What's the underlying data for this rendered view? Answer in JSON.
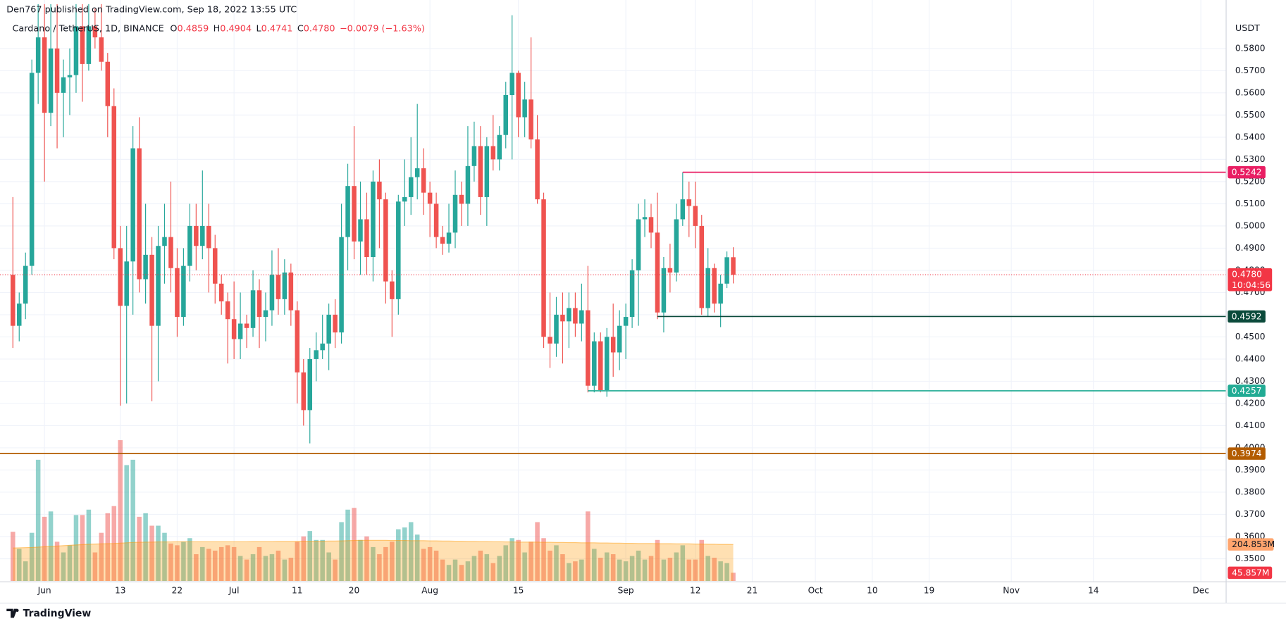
{
  "header": {
    "published": "Den767 published on TradingView.com, Sep 18, 2022 13:55 UTC",
    "footer": "TradingView"
  },
  "chart_data": {
    "type": "candlestick",
    "symbol": "Cardano / TetherUS, 1D, BINANCE",
    "ohlc_legend": [
      {
        "key": "O",
        "value": "0.4859"
      },
      {
        "key": "H",
        "value": "0.4904"
      },
      {
        "key": "L",
        "value": "0.4741"
      },
      {
        "key": "C",
        "value": "0.4780"
      }
    ],
    "change": "−0.0079 (−1.63%)",
    "y_unit": "USDT",
    "up_color": "#26a69a",
    "down_color": "#ef5350",
    "x": [
      "2022-05-27",
      "2022-05-28",
      "2022-05-29",
      "2022-05-30",
      "2022-05-31",
      "2022-06-01",
      "2022-06-02",
      "2022-06-03",
      "2022-06-04",
      "2022-06-05",
      "2022-06-06",
      "2022-06-07",
      "2022-06-08",
      "2022-06-09",
      "2022-06-10",
      "2022-06-11",
      "2022-06-12",
      "2022-06-13",
      "2022-06-14",
      "2022-06-15",
      "2022-06-16",
      "2022-06-17",
      "2022-06-18",
      "2022-06-19",
      "2022-06-20",
      "2022-06-21",
      "2022-06-22",
      "2022-06-23",
      "2022-06-24",
      "2022-06-25",
      "2022-06-26",
      "2022-06-27",
      "2022-06-28",
      "2022-06-29",
      "2022-06-30",
      "2022-07-01",
      "2022-07-02",
      "2022-07-03",
      "2022-07-04",
      "2022-07-05",
      "2022-07-06",
      "2022-07-07",
      "2022-07-08",
      "2022-07-09",
      "2022-07-10",
      "2022-07-11",
      "2022-07-12",
      "2022-07-13",
      "2022-07-14",
      "2022-07-15",
      "2022-07-16",
      "2022-07-17",
      "2022-07-18",
      "2022-07-19",
      "2022-07-20",
      "2022-07-21",
      "2022-07-22",
      "2022-07-23",
      "2022-07-24",
      "2022-07-25",
      "2022-07-26",
      "2022-07-27",
      "2022-07-28",
      "2022-07-29",
      "2022-07-30",
      "2022-07-31",
      "2022-08-01",
      "2022-08-02",
      "2022-08-03",
      "2022-08-04",
      "2022-08-05",
      "2022-08-06",
      "2022-08-07",
      "2022-08-08",
      "2022-08-09",
      "2022-08-10",
      "2022-08-11",
      "2022-08-12",
      "2022-08-13",
      "2022-08-14",
      "2022-08-15",
      "2022-08-16",
      "2022-08-17",
      "2022-08-18",
      "2022-08-19",
      "2022-08-20",
      "2022-08-21",
      "2022-08-22",
      "2022-08-23",
      "2022-08-24",
      "2022-08-25",
      "2022-08-26",
      "2022-08-27",
      "2022-08-28",
      "2022-08-29",
      "2022-08-30",
      "2022-08-31",
      "2022-09-01",
      "2022-09-02",
      "2022-09-03",
      "2022-09-04",
      "2022-09-05",
      "2022-09-06",
      "2022-09-07",
      "2022-09-08",
      "2022-09-09",
      "2022-09-10",
      "2022-09-11",
      "2022-09-12",
      "2022-09-13",
      "2022-09-14",
      "2022-09-15",
      "2022-09-16",
      "2022-09-17",
      "2022-09-18"
    ],
    "open": [
      0.478,
      0.455,
      0.465,
      0.482,
      0.569,
      0.585,
      0.551,
      0.58,
      0.56,
      0.567,
      0.568,
      0.59,
      0.573,
      0.59,
      0.585,
      0.574,
      0.554,
      0.49,
      0.464,
      0.484,
      0.535,
      0.476,
      0.487,
      0.455,
      0.491,
      0.495,
      0.481,
      0.459,
      0.482,
      0.5,
      0.491,
      0.5,
      0.49,
      0.474,
      0.466,
      0.458,
      0.449,
      0.456,
      0.454,
      0.471,
      0.459,
      0.462,
      0.478,
      0.467,
      0.479,
      0.462,
      0.434,
      0.417,
      0.44,
      0.444,
      0.447,
      0.46,
      0.452,
      0.495,
      0.518,
      0.493,
      0.503,
      0.486,
      0.52,
      0.512,
      0.475,
      0.467,
      0.511,
      0.513,
      0.522,
      0.526,
      0.515,
      0.51,
      0.495,
      0.492,
      0.497,
      0.514,
      0.51,
      0.527,
      0.536,
      0.513,
      0.536,
      0.53,
      0.541,
      0.559,
      0.569,
      0.549,
      0.557,
      0.539,
      0.512,
      0.45,
      0.447,
      0.46,
      0.457,
      0.463,
      0.456,
      0.462,
      0.428,
      0.448,
      0.426,
      0.45,
      0.443,
      0.455,
      0.459,
      0.48,
      0.503,
      0.504,
      0.497,
      0.461,
      0.481,
      0.479,
      0.503,
      0.512,
      0.509,
      0.5,
      0.463,
      0.481,
      0.465,
      0.474,
      0.4859
    ],
    "high": [
      0.513,
      0.47,
      0.488,
      0.575,
      0.6,
      0.6,
      0.6,
      0.6,
      0.575,
      0.58,
      0.6,
      0.6,
      0.6,
      0.598,
      0.6,
      0.578,
      0.562,
      0.5,
      0.5,
      0.545,
      0.549,
      0.51,
      0.495,
      0.5,
      0.51,
      0.52,
      0.49,
      0.49,
      0.51,
      0.51,
      0.525,
      0.51,
      0.496,
      0.478,
      0.47,
      0.475,
      0.47,
      0.46,
      0.48,
      0.476,
      0.47,
      0.489,
      0.49,
      0.485,
      0.483,
      0.466,
      0.44,
      0.445,
      0.452,
      0.46,
      0.465,
      0.467,
      0.51,
      0.528,
      0.545,
      0.52,
      0.515,
      0.525,
      0.53,
      0.515,
      0.48,
      0.514,
      0.53,
      0.54,
      0.555,
      0.535,
      0.52,
      0.515,
      0.5,
      0.51,
      0.525,
      0.52,
      0.545,
      0.547,
      0.545,
      0.54,
      0.55,
      0.545,
      0.565,
      0.595,
      0.57,
      0.565,
      0.585,
      0.55,
      0.515,
      0.47,
      0.468,
      0.47,
      0.47,
      0.47,
      0.474,
      0.482,
      0.452,
      0.452,
      0.454,
      0.465,
      0.462,
      0.465,
      0.485,
      0.51,
      0.512,
      0.51,
      0.515,
      0.486,
      0.492,
      0.51,
      0.5242,
      0.52,
      0.52,
      0.505,
      0.49,
      0.483,
      0.478,
      0.4885,
      0.4904
    ],
    "low": [
      0.445,
      0.448,
      0.458,
      0.478,
      0.555,
      0.52,
      0.545,
      0.535,
      0.54,
      0.55,
      0.56,
      0.556,
      0.57,
      0.58,
      0.57,
      0.54,
      0.485,
      0.419,
      0.42,
      0.46,
      0.47,
      0.465,
      0.421,
      0.43,
      0.474,
      0.47,
      0.45,
      0.455,
      0.475,
      0.48,
      0.485,
      0.47,
      0.465,
      0.46,
      0.438,
      0.44,
      0.44,
      0.445,
      0.45,
      0.445,
      0.448,
      0.455,
      0.46,
      0.46,
      0.455,
      0.42,
      0.41,
      0.402,
      0.43,
      0.44,
      0.435,
      0.445,
      0.447,
      0.48,
      0.485,
      0.478,
      0.478,
      0.475,
      0.49,
      0.465,
      0.45,
      0.46,
      0.5,
      0.505,
      0.512,
      0.505,
      0.495,
      0.49,
      0.487,
      0.488,
      0.49,
      0.5,
      0.5,
      0.52,
      0.505,
      0.5,
      0.525,
      0.525,
      0.535,
      0.53,
      0.54,
      0.54,
      0.535,
      0.51,
      0.445,
      0.436,
      0.441,
      0.438,
      0.445,
      0.45,
      0.448,
      0.425,
      0.425,
      0.425,
      0.423,
      0.432,
      0.435,
      0.44,
      0.454,
      0.455,
      0.495,
      0.49,
      0.458,
      0.452,
      0.47,
      0.475,
      0.5,
      0.495,
      0.49,
      0.46,
      0.459,
      0.461,
      0.4544,
      0.472,
      0.4741
    ],
    "close": [
      0.455,
      0.465,
      0.482,
      0.569,
      0.585,
      0.551,
      0.58,
      0.56,
      0.567,
      0.568,
      0.59,
      0.573,
      0.59,
      0.585,
      0.574,
      0.554,
      0.49,
      0.464,
      0.484,
      0.535,
      0.476,
      0.487,
      0.455,
      0.491,
      0.495,
      0.481,
      0.459,
      0.482,
      0.5,
      0.491,
      0.5,
      0.49,
      0.474,
      0.466,
      0.458,
      0.449,
      0.456,
      0.454,
      0.471,
      0.459,
      0.462,
      0.478,
      0.467,
      0.479,
      0.462,
      0.434,
      0.417,
      0.44,
      0.444,
      0.447,
      0.46,
      0.452,
      0.495,
      0.518,
      0.493,
      0.503,
      0.486,
      0.52,
      0.512,
      0.475,
      0.467,
      0.511,
      0.513,
      0.522,
      0.526,
      0.515,
      0.51,
      0.495,
      0.492,
      0.497,
      0.514,
      0.51,
      0.527,
      0.536,
      0.513,
      0.536,
      0.53,
      0.541,
      0.559,
      0.569,
      0.549,
      0.557,
      0.539,
      0.512,
      0.45,
      0.447,
      0.46,
      0.457,
      0.463,
      0.456,
      0.462,
      0.428,
      0.448,
      0.426,
      0.45,
      0.443,
      0.455,
      0.459,
      0.48,
      0.503,
      0.504,
      0.497,
      0.461,
      0.481,
      0.479,
      0.503,
      0.512,
      0.509,
      0.5,
      0.463,
      0.481,
      0.465,
      0.474,
      0.4859,
      0.478
    ],
    "volume": {
      "values": [
        276,
        180,
        110,
        270,
        680,
        360,
        390,
        220,
        160,
        200,
        370,
        370,
        400,
        160,
        270,
        380,
        420,
        790,
        650,
        680,
        360,
        380,
        310,
        310,
        270,
        210,
        200,
        220,
        240,
        150,
        190,
        180,
        170,
        190,
        200,
        190,
        140,
        120,
        150,
        190,
        140,
        150,
        170,
        120,
        130,
        220,
        250,
        280,
        230,
        230,
        160,
        120,
        330,
        400,
        410,
        230,
        250,
        190,
        150,
        190,
        220,
        290,
        300,
        330,
        260,
        180,
        190,
        170,
        120,
        90,
        120,
        90,
        110,
        140,
        170,
        150,
        100,
        140,
        200,
        240,
        230,
        160,
        220,
        330,
        240,
        170,
        200,
        150,
        100,
        110,
        120,
        390,
        180,
        130,
        160,
        150,
        120,
        110,
        140,
        170,
        120,
        140,
        230,
        120,
        130,
        160,
        200,
        120,
        120,
        230,
        140,
        130,
        110,
        100,
        45.857
      ],
      "value_label": "45.857M",
      "ylim": [
        0,
        800
      ],
      "label_color": "#f23645"
    },
    "volume_ma": {
      "values": [
        185,
        186,
        187,
        188,
        190,
        192,
        194,
        196,
        198,
        200,
        202,
        204,
        206,
        207,
        208,
        209,
        210,
        212,
        214,
        216,
        217,
        218,
        218,
        219,
        219,
        219,
        220,
        220,
        220,
        220,
        220,
        220,
        220,
        220,
        220,
        220,
        220,
        220,
        221,
        221,
        221,
        221,
        222,
        222,
        222,
        222,
        223,
        223,
        223,
        223,
        224,
        224,
        225,
        226,
        227,
        228,
        228,
        228,
        228,
        228,
        227,
        227,
        227,
        226,
        226,
        226,
        225,
        225,
        224,
        224,
        223,
        223,
        222,
        222,
        221,
        221,
        220,
        220,
        219,
        219,
        218,
        218,
        218,
        218,
        217,
        217,
        216,
        216,
        215,
        215,
        214,
        214,
        214,
        213,
        213,
        212,
        212,
        211,
        211,
        210,
        210,
        210,
        209,
        209,
        209,
        208,
        208,
        208,
        207,
        207,
        206,
        206,
        205,
        205,
        204.853
      ],
      "value_label": "204.853M",
      "color": "#ff9800"
    },
    "levels": [
      {
        "value": 0.5242,
        "label": "0.5242",
        "color": "#e91e63",
        "from": "2022-09-10"
      },
      {
        "value": 0.4592,
        "label": "0.4592",
        "color": "#0b4a3b",
        "from": "2022-09-06"
      },
      {
        "value": 0.4257,
        "label": "0.4257",
        "color": "#22ab94",
        "from": "2022-08-26"
      },
      {
        "value": 0.3974,
        "label": "0.3974",
        "color": "#b35c00"
      }
    ],
    "last_price": {
      "value": 0.478,
      "label": "0.4780",
      "countdown": "10:04:56",
      "color": "#f23645"
    },
    "xlim": [
      "2022-05-26",
      "2022-12-05"
    ],
    "ylim": [
      0.34,
      0.6
    ],
    "yticks": [
      {
        "value": 0.35,
        "label": "0.3500"
      },
      {
        "value": 0.36,
        "label": "0.3600"
      },
      {
        "value": 0.37,
        "label": "0.3700"
      },
      {
        "value": 0.38,
        "label": "0.3800"
      },
      {
        "value": 0.39,
        "label": "0.3900"
      },
      {
        "value": 0.4,
        "label": "0.4000"
      },
      {
        "value": 0.41,
        "label": "0.4100"
      },
      {
        "value": 0.42,
        "label": "0.4200"
      },
      {
        "value": 0.43,
        "label": "0.4300"
      },
      {
        "value": 0.44,
        "label": "0.4400"
      },
      {
        "value": 0.45,
        "label": "0.4500"
      },
      {
        "value": 0.46,
        "label": "0.4600"
      },
      {
        "value": 0.47,
        "label": "0.4700"
      },
      {
        "value": 0.48,
        "label": "0.4800"
      },
      {
        "value": 0.49,
        "label": "0.4900"
      },
      {
        "value": 0.5,
        "label": "0.5000"
      },
      {
        "value": 0.51,
        "label": "0.5100"
      },
      {
        "value": 0.52,
        "label": "0.5200"
      },
      {
        "value": 0.53,
        "label": "0.5300"
      },
      {
        "value": 0.54,
        "label": "0.5400"
      },
      {
        "value": 0.55,
        "label": "0.5500"
      },
      {
        "value": 0.56,
        "label": "0.5600"
      },
      {
        "value": 0.57,
        "label": "0.5700"
      },
      {
        "value": 0.58,
        "label": "0.5800"
      }
    ],
    "xticks": [
      {
        "value": "2022-06-01",
        "label": "Jun"
      },
      {
        "value": "2022-06-13",
        "label": "13"
      },
      {
        "value": "2022-06-22",
        "label": "22"
      },
      {
        "value": "2022-07-01",
        "label": "Jul"
      },
      {
        "value": "2022-07-11",
        "label": "11"
      },
      {
        "value": "2022-07-20",
        "label": "20"
      },
      {
        "value": "2022-08-01",
        "label": "Aug"
      },
      {
        "value": "2022-08-15",
        "label": "15"
      },
      {
        "value": "2022-09-01",
        "label": "Sep"
      },
      {
        "value": "2022-09-12",
        "label": "12"
      },
      {
        "value": "2022-09-21",
        "label": "21"
      },
      {
        "value": "2022-10-01",
        "label": "Oct"
      },
      {
        "value": "2022-10-10",
        "label": "10"
      },
      {
        "value": "2022-10-19",
        "label": "19"
      },
      {
        "value": "2022-11-01",
        "label": "Nov"
      },
      {
        "value": "2022-11-14",
        "label": "14"
      },
      {
        "value": "2022-12-01",
        "label": "Dec"
      }
    ],
    "grid": true
  }
}
